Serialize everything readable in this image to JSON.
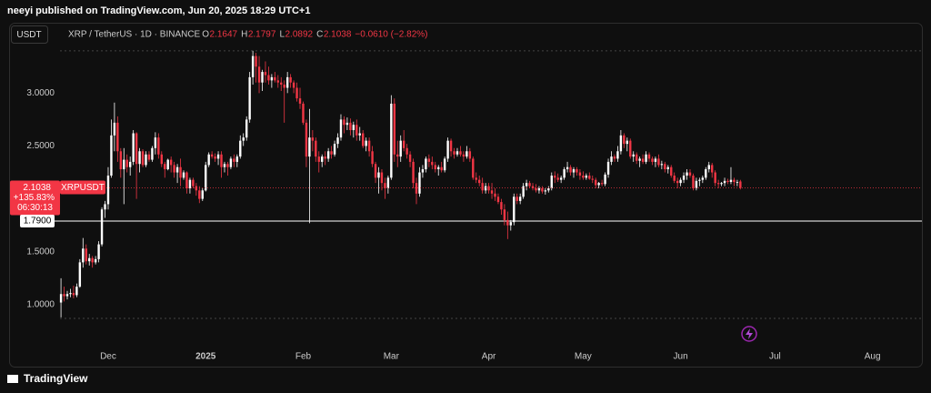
{
  "header": "neeyi published on TradingView.com, Jun 20, 2025 18:29 UTC+1",
  "currency_button": "USDT",
  "footer_logo": "TradingView",
  "chart_data": {
    "type": "candlestick",
    "legend": {
      "symbol": "XRP / TetherUS · 1D · BINANCE",
      "open_label": "O",
      "high_label": "H",
      "low_label": "L",
      "close_label": "C",
      "change": "−0.0610 (−2.82%)"
    },
    "up_color": "#ffffff",
    "down_color": "#f23645",
    "ylim": [
      0.44,
      3.45
    ],
    "yticks": [
      {
        "value": 1,
        "label": "1.0000"
      },
      {
        "value": 1.5,
        "label": "1.5000"
      },
      {
        "value": 2.5,
        "label": "2.5000"
      },
      {
        "value": 3,
        "label": "3.0000"
      }
    ],
    "xlim": [
      -16.5,
      274
    ],
    "xticks": [
      {
        "value": 15,
        "label": "Dec"
      },
      {
        "value": 46,
        "label": "2025"
      },
      {
        "value": 77,
        "label": "Feb"
      },
      {
        "value": 105,
        "label": "Mar"
      },
      {
        "value": 136,
        "label": "Apr"
      },
      {
        "value": 166,
        "label": "May"
      },
      {
        "value": 197,
        "label": "Jun"
      },
      {
        "value": 227,
        "label": "Jul"
      },
      {
        "value": 258,
        "label": "Aug"
      }
    ],
    "range_lines": [
      3.4,
      0.87
    ],
    "level_line": {
      "value": 1.79,
      "label": "1.7900"
    },
    "price_label": {
      "change": "+135.83%",
      "countdown": "06:30:13",
      "symbol": "XRPUSDT"
    },
    "candles": [
      [
        1.02,
        1.25,
        0.88,
        1.1
      ],
      [
        1.1,
        1.17,
        1.03,
        1.08
      ],
      [
        1.08,
        1.13,
        1.05,
        1.1
      ],
      [
        1.1,
        1.15,
        1.07,
        1.11
      ],
      [
        1.11,
        1.18,
        1.06,
        1.09
      ],
      [
        1.09,
        1.2,
        1.07,
        1.17
      ],
      [
        1.17,
        1.43,
        1.16,
        1.4
      ],
      [
        1.4,
        1.63,
        1.35,
        1.53
      ],
      [
        1.53,
        1.57,
        1.38,
        1.41
      ],
      [
        1.41,
        1.48,
        1.37,
        1.44
      ],
      [
        1.44,
        1.46,
        1.35,
        1.4
      ],
      [
        1.4,
        1.46,
        1.38,
        1.43
      ],
      [
        1.43,
        1.6,
        1.4,
        1.57
      ],
      [
        1.57,
        1.92,
        1.55,
        1.9
      ],
      [
        1.9,
        1.98,
        1.82,
        1.95
      ],
      [
        1.95,
        2.3,
        1.9,
        2.22
      ],
      [
        2.22,
        2.75,
        2.2,
        2.6
      ],
      [
        2.6,
        2.91,
        2.45,
        2.72
      ],
      [
        2.72,
        2.78,
        2.35,
        2.45
      ],
      [
        2.45,
        2.48,
        2.2,
        2.28
      ],
      [
        2.28,
        2.48,
        1.95,
        2.37
      ],
      [
        2.37,
        2.42,
        2.25,
        2.3
      ],
      [
        2.3,
        2.4,
        2.22,
        2.35
      ],
      [
        2.35,
        2.65,
        2.32,
        2.62
      ],
      [
        2.62,
        2.63,
        2.0,
        2.33
      ],
      [
        2.33,
        2.48,
        2.25,
        2.45
      ],
      [
        2.45,
        2.47,
        2.3,
        2.32
      ],
      [
        2.32,
        2.45,
        2.3,
        2.42
      ],
      [
        2.42,
        2.45,
        2.35,
        2.37
      ],
      [
        2.37,
        2.5,
        2.35,
        2.48
      ],
      [
        2.48,
        2.63,
        2.42,
        2.58
      ],
      [
        2.58,
        2.62,
        2.38,
        2.42
      ],
      [
        2.42,
        2.45,
        2.3,
        2.33
      ],
      [
        2.33,
        2.35,
        2.2,
        2.28
      ],
      [
        2.28,
        2.38,
        2.27,
        2.37
      ],
      [
        2.37,
        2.4,
        2.25,
        2.32
      ],
      [
        2.32,
        2.35,
        2.2,
        2.25
      ],
      [
        2.25,
        2.33,
        2.15,
        2.3
      ],
      [
        2.3,
        2.38,
        2.12,
        2.2
      ],
      [
        2.2,
        2.27,
        2.18,
        2.25
      ],
      [
        2.25,
        2.26,
        2.05,
        2.1
      ],
      [
        2.1,
        2.2,
        2.05,
        2.18
      ],
      [
        2.18,
        2.2,
        2.1,
        2.12
      ],
      [
        2.12,
        2.15,
        2.03,
        2.08
      ],
      [
        2.08,
        2.12,
        1.96,
        2.0
      ],
      [
        2.0,
        2.1,
        1.98,
        2.08
      ],
      [
        2.08,
        2.35,
        2.07,
        2.32
      ],
      [
        2.32,
        2.44,
        2.3,
        2.42
      ],
      [
        2.42,
        2.45,
        2.38,
        2.4
      ],
      [
        2.4,
        2.43,
        2.35,
        2.38
      ],
      [
        2.38,
        2.45,
        2.32,
        2.42
      ],
      [
        2.42,
        2.45,
        2.2,
        2.3
      ],
      [
        2.3,
        2.35,
        2.25,
        2.33
      ],
      [
        2.33,
        2.35,
        2.22,
        2.3
      ],
      [
        2.3,
        2.4,
        2.28,
        2.38
      ],
      [
        2.38,
        2.42,
        2.3,
        2.35
      ],
      [
        2.35,
        2.42,
        2.3,
        2.4
      ],
      [
        2.4,
        2.6,
        2.38,
        2.55
      ],
      [
        2.55,
        2.62,
        2.5,
        2.58
      ],
      [
        2.58,
        2.78,
        2.55,
        2.75
      ],
      [
        2.75,
        3.2,
        2.72,
        3.15
      ],
      [
        3.15,
        3.4,
        3.08,
        3.35
      ],
      [
        3.35,
        3.38,
        3.1,
        3.25
      ],
      [
        3.25,
        3.35,
        3.0,
        3.1
      ],
      [
        3.1,
        3.22,
        3.02,
        3.2
      ],
      [
        3.2,
        3.3,
        3.1,
        3.17
      ],
      [
        3.17,
        3.25,
        3.08,
        3.12
      ],
      [
        3.12,
        3.18,
        3.05,
        3.15
      ],
      [
        3.15,
        3.2,
        3.1,
        3.12
      ],
      [
        3.12,
        3.17,
        3.05,
        3.1
      ],
      [
        3.1,
        3.15,
        3.02,
        3.08
      ],
      [
        3.08,
        3.12,
        2.72,
        3.05
      ],
      [
        3.05,
        3.2,
        3.0,
        3.15
      ],
      [
        3.15,
        3.18,
        3.05,
        3.1
      ],
      [
        3.1,
        3.12,
        3.0,
        3.05
      ],
      [
        3.05,
        3.1,
        2.92,
        2.95
      ],
      [
        2.95,
        3.05,
        2.85,
        2.9
      ],
      [
        2.9,
        2.92,
        2.7,
        2.72
      ],
      [
        2.72,
        2.75,
        2.3,
        2.4
      ],
      [
        2.4,
        2.85,
        1.77,
        2.58
      ],
      [
        2.58,
        2.65,
        2.45,
        2.55
      ],
      [
        2.55,
        2.58,
        2.35,
        2.4
      ],
      [
        2.4,
        2.45,
        2.25,
        2.35
      ],
      [
        2.35,
        2.42,
        2.3,
        2.4
      ],
      [
        2.4,
        2.45,
        2.32,
        2.38
      ],
      [
        2.38,
        2.48,
        2.35,
        2.45
      ],
      [
        2.45,
        2.5,
        2.38,
        2.42
      ],
      [
        2.42,
        2.55,
        2.4,
        2.52
      ],
      [
        2.52,
        2.62,
        2.48,
        2.58
      ],
      [
        2.58,
        2.8,
        2.55,
        2.75
      ],
      [
        2.75,
        2.78,
        2.62,
        2.7
      ],
      [
        2.7,
        2.77,
        2.65,
        2.72
      ],
      [
        2.72,
        2.76,
        2.6,
        2.65
      ],
      [
        2.65,
        2.73,
        2.58,
        2.7
      ],
      [
        2.7,
        2.75,
        2.55,
        2.6
      ],
      [
        2.6,
        2.68,
        2.55,
        2.62
      ],
      [
        2.62,
        2.65,
        2.48,
        2.5
      ],
      [
        2.5,
        2.58,
        2.45,
        2.55
      ],
      [
        2.55,
        2.58,
        2.4,
        2.45
      ],
      [
        2.45,
        2.5,
        2.3,
        2.33
      ],
      [
        2.33,
        2.35,
        2.15,
        2.2
      ],
      [
        2.2,
        2.3,
        2.05,
        2.25
      ],
      [
        2.25,
        2.28,
        2.08,
        2.15
      ],
      [
        2.15,
        2.2,
        2.0,
        2.1
      ],
      [
        2.1,
        2.22,
        2.05,
        2.2
      ],
      [
        2.2,
        2.98,
        2.18,
        2.9
      ],
      [
        2.9,
        2.95,
        2.35,
        2.42
      ],
      [
        2.42,
        2.55,
        2.3,
        2.4
      ],
      [
        2.4,
        2.6,
        2.35,
        2.55
      ],
      [
        2.55,
        2.65,
        2.45,
        2.48
      ],
      [
        2.48,
        2.52,
        2.38,
        2.42
      ],
      [
        2.42,
        2.45,
        2.3,
        2.35
      ],
      [
        2.35,
        2.38,
        2.1,
        2.15
      ],
      [
        2.15,
        2.2,
        1.95,
        2.05
      ],
      [
        2.05,
        2.3,
        2.02,
        2.25
      ],
      [
        2.25,
        2.32,
        2.2,
        2.28
      ],
      [
        2.28,
        2.4,
        2.25,
        2.38
      ],
      [
        2.38,
        2.42,
        2.3,
        2.35
      ],
      [
        2.35,
        2.4,
        2.28,
        2.32
      ],
      [
        2.32,
        2.35,
        2.25,
        2.28
      ],
      [
        2.28,
        2.32,
        2.22,
        2.3
      ],
      [
        2.3,
        2.35,
        2.25,
        2.27
      ],
      [
        2.27,
        2.4,
        2.25,
        2.38
      ],
      [
        2.38,
        2.58,
        2.35,
        2.55
      ],
      [
        2.55,
        2.57,
        2.4,
        2.45
      ],
      [
        2.45,
        2.48,
        2.38,
        2.42
      ],
      [
        2.42,
        2.48,
        2.4,
        2.45
      ],
      [
        2.45,
        2.5,
        2.4,
        2.42
      ],
      [
        2.42,
        2.45,
        2.35,
        2.4
      ],
      [
        2.4,
        2.5,
        2.38,
        2.45
      ],
      [
        2.45,
        2.48,
        2.35,
        2.38
      ],
      [
        2.38,
        2.4,
        2.18,
        2.2
      ],
      [
        2.2,
        2.25,
        2.15,
        2.18
      ],
      [
        2.18,
        2.22,
        2.12,
        2.15
      ],
      [
        2.15,
        2.2,
        2.05,
        2.08
      ],
      [
        2.08,
        2.15,
        2.05,
        2.12
      ],
      [
        2.12,
        2.15,
        2.05,
        2.08
      ],
      [
        2.08,
        2.15,
        2.0,
        2.05
      ],
      [
        2.05,
        2.1,
        1.98,
        2.02
      ],
      [
        2.02,
        2.05,
        1.95,
        1.97
      ],
      [
        1.97,
        2.0,
        1.85,
        1.9
      ],
      [
        1.9,
        1.95,
        1.75,
        1.8
      ],
      [
        1.8,
        1.88,
        1.62,
        1.75
      ],
      [
        1.75,
        1.8,
        1.7,
        1.78
      ],
      [
        1.78,
        2.05,
        1.75,
        2.02
      ],
      [
        2.02,
        2.05,
        1.95,
        1.98
      ],
      [
        1.98,
        2.05,
        1.95,
        2.02
      ],
      [
        2.02,
        2.15,
        2.0,
        2.12
      ],
      [
        2.12,
        2.18,
        2.08,
        2.15
      ],
      [
        2.15,
        2.17,
        2.1,
        2.12
      ],
      [
        2.12,
        2.15,
        2.08,
        2.1
      ],
      [
        2.1,
        2.14,
        2.06,
        2.08
      ],
      [
        2.08,
        2.12,
        2.05,
        2.1
      ],
      [
        2.1,
        2.12,
        2.05,
        2.07
      ],
      [
        2.07,
        2.1,
        2.04,
        2.08
      ],
      [
        2.08,
        2.12,
        2.06,
        2.1
      ],
      [
        2.1,
        2.25,
        2.08,
        2.22
      ],
      [
        2.22,
        2.26,
        2.15,
        2.2
      ],
      [
        2.2,
        2.24,
        2.16,
        2.18
      ],
      [
        2.18,
        2.22,
        2.15,
        2.2
      ],
      [
        2.2,
        2.3,
        2.18,
        2.28
      ],
      [
        2.28,
        2.35,
        2.25,
        2.3
      ],
      [
        2.3,
        2.32,
        2.22,
        2.25
      ],
      [
        2.25,
        2.3,
        2.2,
        2.28
      ],
      [
        2.28,
        2.3,
        2.22,
        2.25
      ],
      [
        2.25,
        2.28,
        2.18,
        2.22
      ],
      [
        2.22,
        2.26,
        2.18,
        2.2
      ],
      [
        2.2,
        2.24,
        2.18,
        2.22
      ],
      [
        2.22,
        2.25,
        2.18,
        2.19
      ],
      [
        2.19,
        2.22,
        2.15,
        2.18
      ],
      [
        2.18,
        2.2,
        2.1,
        2.13
      ],
      [
        2.13,
        2.16,
        2.1,
        2.15
      ],
      [
        2.15,
        2.18,
        2.12,
        2.14
      ],
      [
        2.14,
        2.25,
        2.12,
        2.23
      ],
      [
        2.23,
        2.38,
        2.2,
        2.35
      ],
      [
        2.35,
        2.45,
        2.32,
        2.4
      ],
      [
        2.4,
        2.42,
        2.35,
        2.38
      ],
      [
        2.38,
        2.5,
        2.35,
        2.45
      ],
      [
        2.45,
        2.65,
        2.42,
        2.6
      ],
      [
        2.6,
        2.62,
        2.48,
        2.52
      ],
      [
        2.52,
        2.58,
        2.45,
        2.55
      ],
      [
        2.55,
        2.57,
        2.38,
        2.4
      ],
      [
        2.4,
        2.45,
        2.35,
        2.42
      ],
      [
        2.42,
        2.44,
        2.33,
        2.36
      ],
      [
        2.36,
        2.4,
        2.3,
        2.38
      ],
      [
        2.38,
        2.42,
        2.33,
        2.35
      ],
      [
        2.35,
        2.45,
        2.33,
        2.42
      ],
      [
        2.42,
        2.44,
        2.35,
        2.38
      ],
      [
        2.38,
        2.4,
        2.32,
        2.35
      ],
      [
        2.35,
        2.4,
        2.3,
        2.38
      ],
      [
        2.38,
        2.42,
        2.3,
        2.32
      ],
      [
        2.32,
        2.36,
        2.28,
        2.33
      ],
      [
        2.33,
        2.35,
        2.25,
        2.28
      ],
      [
        2.28,
        2.32,
        2.24,
        2.3
      ],
      [
        2.3,
        2.32,
        2.2,
        2.22
      ],
      [
        2.22,
        2.25,
        2.15,
        2.17
      ],
      [
        2.17,
        2.2,
        2.1,
        2.15
      ],
      [
        2.15,
        2.2,
        2.12,
        2.18
      ],
      [
        2.18,
        2.25,
        2.15,
        2.22
      ],
      [
        2.22,
        2.28,
        2.18,
        2.25
      ],
      [
        2.25,
        2.28,
        2.2,
        2.22
      ],
      [
        2.22,
        2.24,
        2.08,
        2.1
      ],
      [
        2.1,
        2.2,
        2.08,
        2.17
      ],
      [
        2.17,
        2.2,
        2.12,
        2.18
      ],
      [
        2.18,
        2.22,
        2.15,
        2.2
      ],
      [
        2.2,
        2.3,
        2.18,
        2.28
      ],
      [
        2.28,
        2.35,
        2.25,
        2.32
      ],
      [
        2.32,
        2.34,
        2.2,
        2.25
      ],
      [
        2.25,
        2.27,
        2.12,
        2.15
      ],
      [
        2.15,
        2.18,
        2.1,
        2.14
      ],
      [
        2.14,
        2.16,
        2.12,
        2.15
      ],
      [
        2.15,
        2.2,
        2.12,
        2.17
      ],
      [
        2.17,
        2.19,
        2.14,
        2.16
      ],
      [
        2.16,
        2.3,
        2.14,
        2.18
      ],
      [
        2.18,
        2.2,
        2.12,
        2.16
      ],
      [
        2.16,
        2.18,
        2.12,
        2.16
      ],
      [
        2.1647,
        2.1797,
        2.0892,
        2.1038
      ]
    ]
  }
}
